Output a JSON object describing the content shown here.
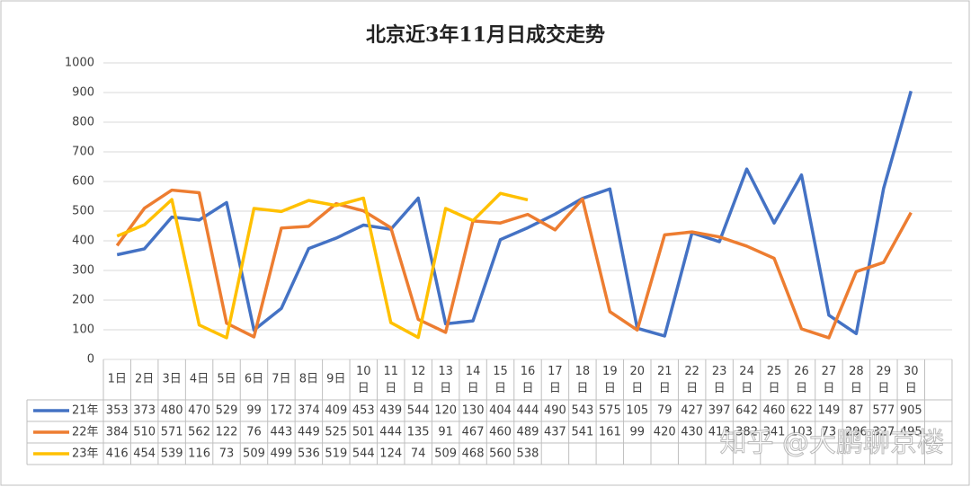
{
  "chart_data": {
    "type": "line",
    "title": "北京近3年11月日成交走势",
    "categories": [
      "1日",
      "2日",
      "3日",
      "4日",
      "5日",
      "6日",
      "7日",
      "8日",
      "9日",
      "10日",
      "11日",
      "12日",
      "13日",
      "14日",
      "15日",
      "16日",
      "17日",
      "18日",
      "19日",
      "20日",
      "21日",
      "22日",
      "23日",
      "24日",
      "25日",
      "26日",
      "27日",
      "28日",
      "29日",
      "30日"
    ],
    "series": [
      {
        "name": "21年",
        "color": "#4472c4",
        "values": [
          353,
          373,
          480,
          470,
          529,
          99,
          172,
          374,
          409,
          453,
          439,
          544,
          120,
          130,
          404,
          444,
          490,
          543,
          575,
          105,
          79,
          427,
          397,
          642,
          460,
          622,
          149,
          87,
          577,
          905
        ]
      },
      {
        "name": "22年",
        "color": "#ed7d31",
        "values": [
          384,
          510,
          571,
          562,
          122,
          76,
          443,
          449,
          525,
          501,
          444,
          135,
          91,
          467,
          460,
          489,
          437,
          541,
          161,
          99,
          420,
          430,
          413,
          382,
          341,
          103,
          73,
          296,
          327,
          495
        ]
      },
      {
        "name": "23年",
        "color": "#ffc000",
        "values": [
          416,
          454,
          539,
          116,
          73,
          509,
          499,
          536,
          519,
          544,
          124,
          74,
          509,
          468,
          560,
          538,
          null,
          null,
          null,
          null,
          null,
          null,
          null,
          null,
          null,
          null,
          null,
          null,
          null,
          null
        ]
      }
    ],
    "ylim": [
      0,
      1000
    ],
    "yticks": [
      0,
      100,
      200,
      300,
      400,
      500,
      600,
      700,
      800,
      900,
      1000
    ],
    "grid": true,
    "data_table": true,
    "watermark": "知乎 @大鹏聊京楼"
  }
}
